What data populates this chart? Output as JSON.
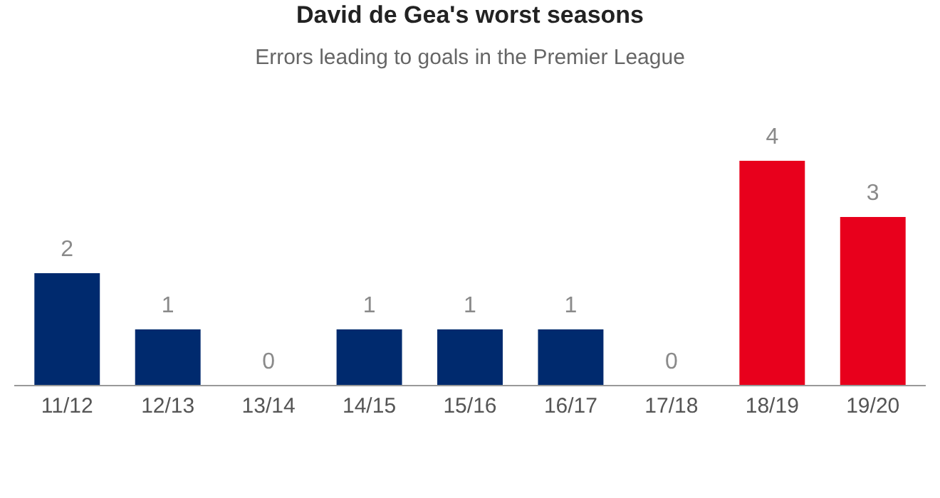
{
  "chart_data": {
    "type": "bar",
    "title": "David de Gea's worst seasons",
    "subtitle": "Errors leading to goals in the Premier League",
    "categories": [
      "11/12",
      "12/13",
      "13/14",
      "14/15",
      "15/16",
      "16/17",
      "17/18",
      "18/19",
      "19/20"
    ],
    "values": [
      2,
      1,
      0,
      1,
      1,
      1,
      0,
      4,
      3
    ],
    "colors": [
      "#002a6e",
      "#002a6e",
      "#002a6e",
      "#002a6e",
      "#002a6e",
      "#002a6e",
      "#002a6e",
      "#e8001c",
      "#e8001c"
    ],
    "data_labels": true
  }
}
